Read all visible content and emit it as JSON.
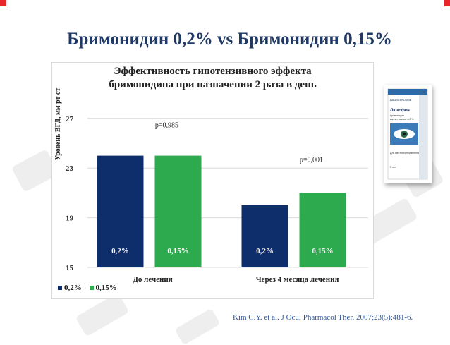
{
  "slide": {
    "title": "Бримонидин 0,2%  vs  Бримонидин 0,15%",
    "citation": "Kim C.Y. et al. J Ocul Pharmacol Ther. 2007;23(5):481-6.",
    "accent_color": "#e8262a"
  },
  "chart_data": {
    "type": "bar",
    "title_lines": [
      "Эффективность гипотензивного эффекта",
      "бримонидина при назначении 2 раза в день"
    ],
    "ylabel": "Уровень ВГД, мм рт ст",
    "xlabel": "",
    "ylim": [
      15,
      27.5
    ],
    "yticks": [
      15,
      19,
      23,
      27
    ],
    "categories": [
      "До лечения",
      "Через 4 месяца лечения"
    ],
    "series": [
      {
        "name": "0,2%",
        "color": "#0d2d6b",
        "values": [
          24.0,
          20.0
        ],
        "labels": [
          "0,2%",
          "0,2%"
        ]
      },
      {
        "name": "0,15%",
        "color": "#2eaa4e",
        "values": [
          24.0,
          21.0
        ],
        "labels": [
          "0,15%",
          "0,15%"
        ]
      }
    ],
    "annotations": [
      {
        "text": "p=0,985",
        "category": 0
      },
      {
        "text": "p=0,001",
        "category": 1
      }
    ],
    "legend": [
      "0,2%",
      "0,15%"
    ],
    "legend_position": "bottom-left",
    "grid": true
  },
  "product_box": {
    "brand": "Люксфен",
    "line1": "бримонидин",
    "line2": "капли глазные 0,2 %",
    "line3": "Для местного применения",
    "volume": "5 мл",
    "company": "BAUSCH+LOMB"
  }
}
